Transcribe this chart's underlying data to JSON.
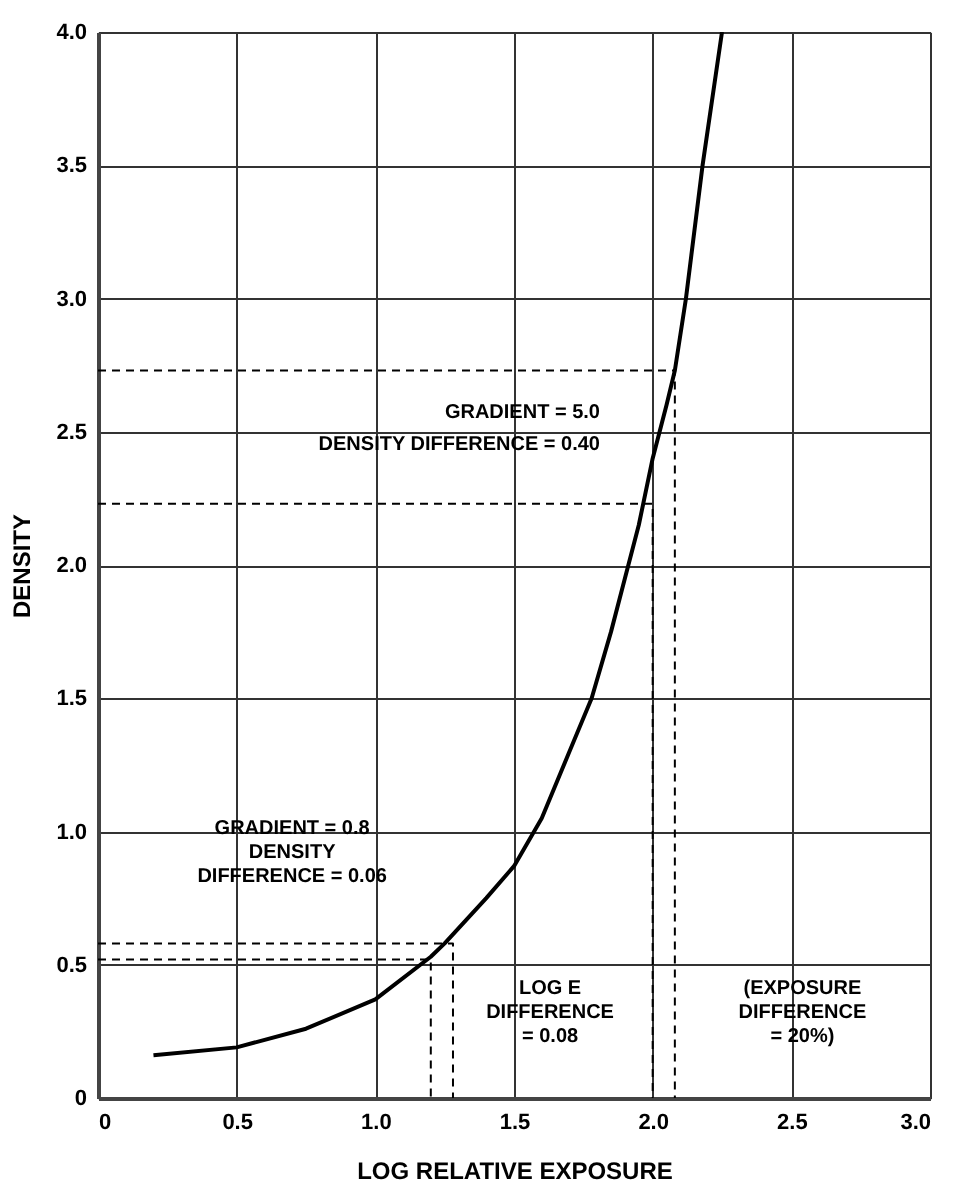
{
  "chart_data": {
    "type": "line",
    "xlabel": "LOG RELATIVE EXPOSURE",
    "ylabel": "DENSITY",
    "xlim": [
      0,
      3
    ],
    "ylim": [
      0,
      4
    ],
    "xticks": [
      0,
      0.5,
      {
        "value": 1,
        "label": "1.0"
      },
      1.5,
      {
        "value": 2,
        "label": "2.0"
      },
      2.5,
      {
        "value": 3,
        "label": "3.0"
      }
    ],
    "yticks": [
      0,
      0.5,
      {
        "value": 1,
        "label": "1.0"
      },
      1.5,
      {
        "value": 2,
        "label": "2.0"
      },
      2.5,
      {
        "value": 3,
        "label": "3.0"
      },
      3.5,
      {
        "value": 4,
        "label": "4.0"
      }
    ],
    "grid": true,
    "marker": "none",
    "series": [
      {
        "color": "#000000",
        "line_style": "solid",
        "x": [
          0.2,
          0.5,
          0.75,
          1.0,
          1.2,
          1.25,
          1.4,
          1.5,
          1.6,
          1.7,
          1.78,
          1.85,
          1.9,
          1.95,
          2.0,
          2.05,
          2.08,
          2.12,
          2.18,
          2.25
        ],
        "values": [
          0.16,
          0.19,
          0.26,
          0.37,
          0.53,
          0.58,
          0.75,
          0.87,
          1.05,
          1.3,
          1.5,
          1.75,
          1.95,
          2.15,
          2.4,
          2.6,
          2.73,
          3.0,
          3.5,
          4.0
        ]
      },
      {
        "color": "#000000",
        "line_style": "dashed",
        "x": [
          0,
          2.08,
          2.08
        ],
        "values": [
          2.73,
          2.73,
          0
        ]
      },
      {
        "color": "#000000",
        "line_style": "dashed",
        "x": [
          0,
          2.0,
          2.0
        ],
        "values": [
          2.23,
          2.23,
          0
        ]
      },
      {
        "color": "#000000",
        "line_style": "dashed",
        "x": [
          0,
          1.28,
          1.28
        ],
        "values": [
          0.58,
          0.58,
          0
        ]
      },
      {
        "color": "#000000",
        "line_style": "dashed",
        "x": [
          0,
          1.2,
          1.2
        ],
        "values": [
          0.52,
          0.52,
          0
        ]
      }
    ],
    "annotations": [
      "GRADIENT = 5.0",
      "DENSITY DIFFERENCE = 0.40",
      "GRADIENT = 0.8\nDENSITY\nDIFFERENCE = 0.06",
      "LOG E\nDIFFERENCE\n= 0.08",
      "(EXPOSURE\nDIFFERENCE\n= 20%)"
    ]
  }
}
